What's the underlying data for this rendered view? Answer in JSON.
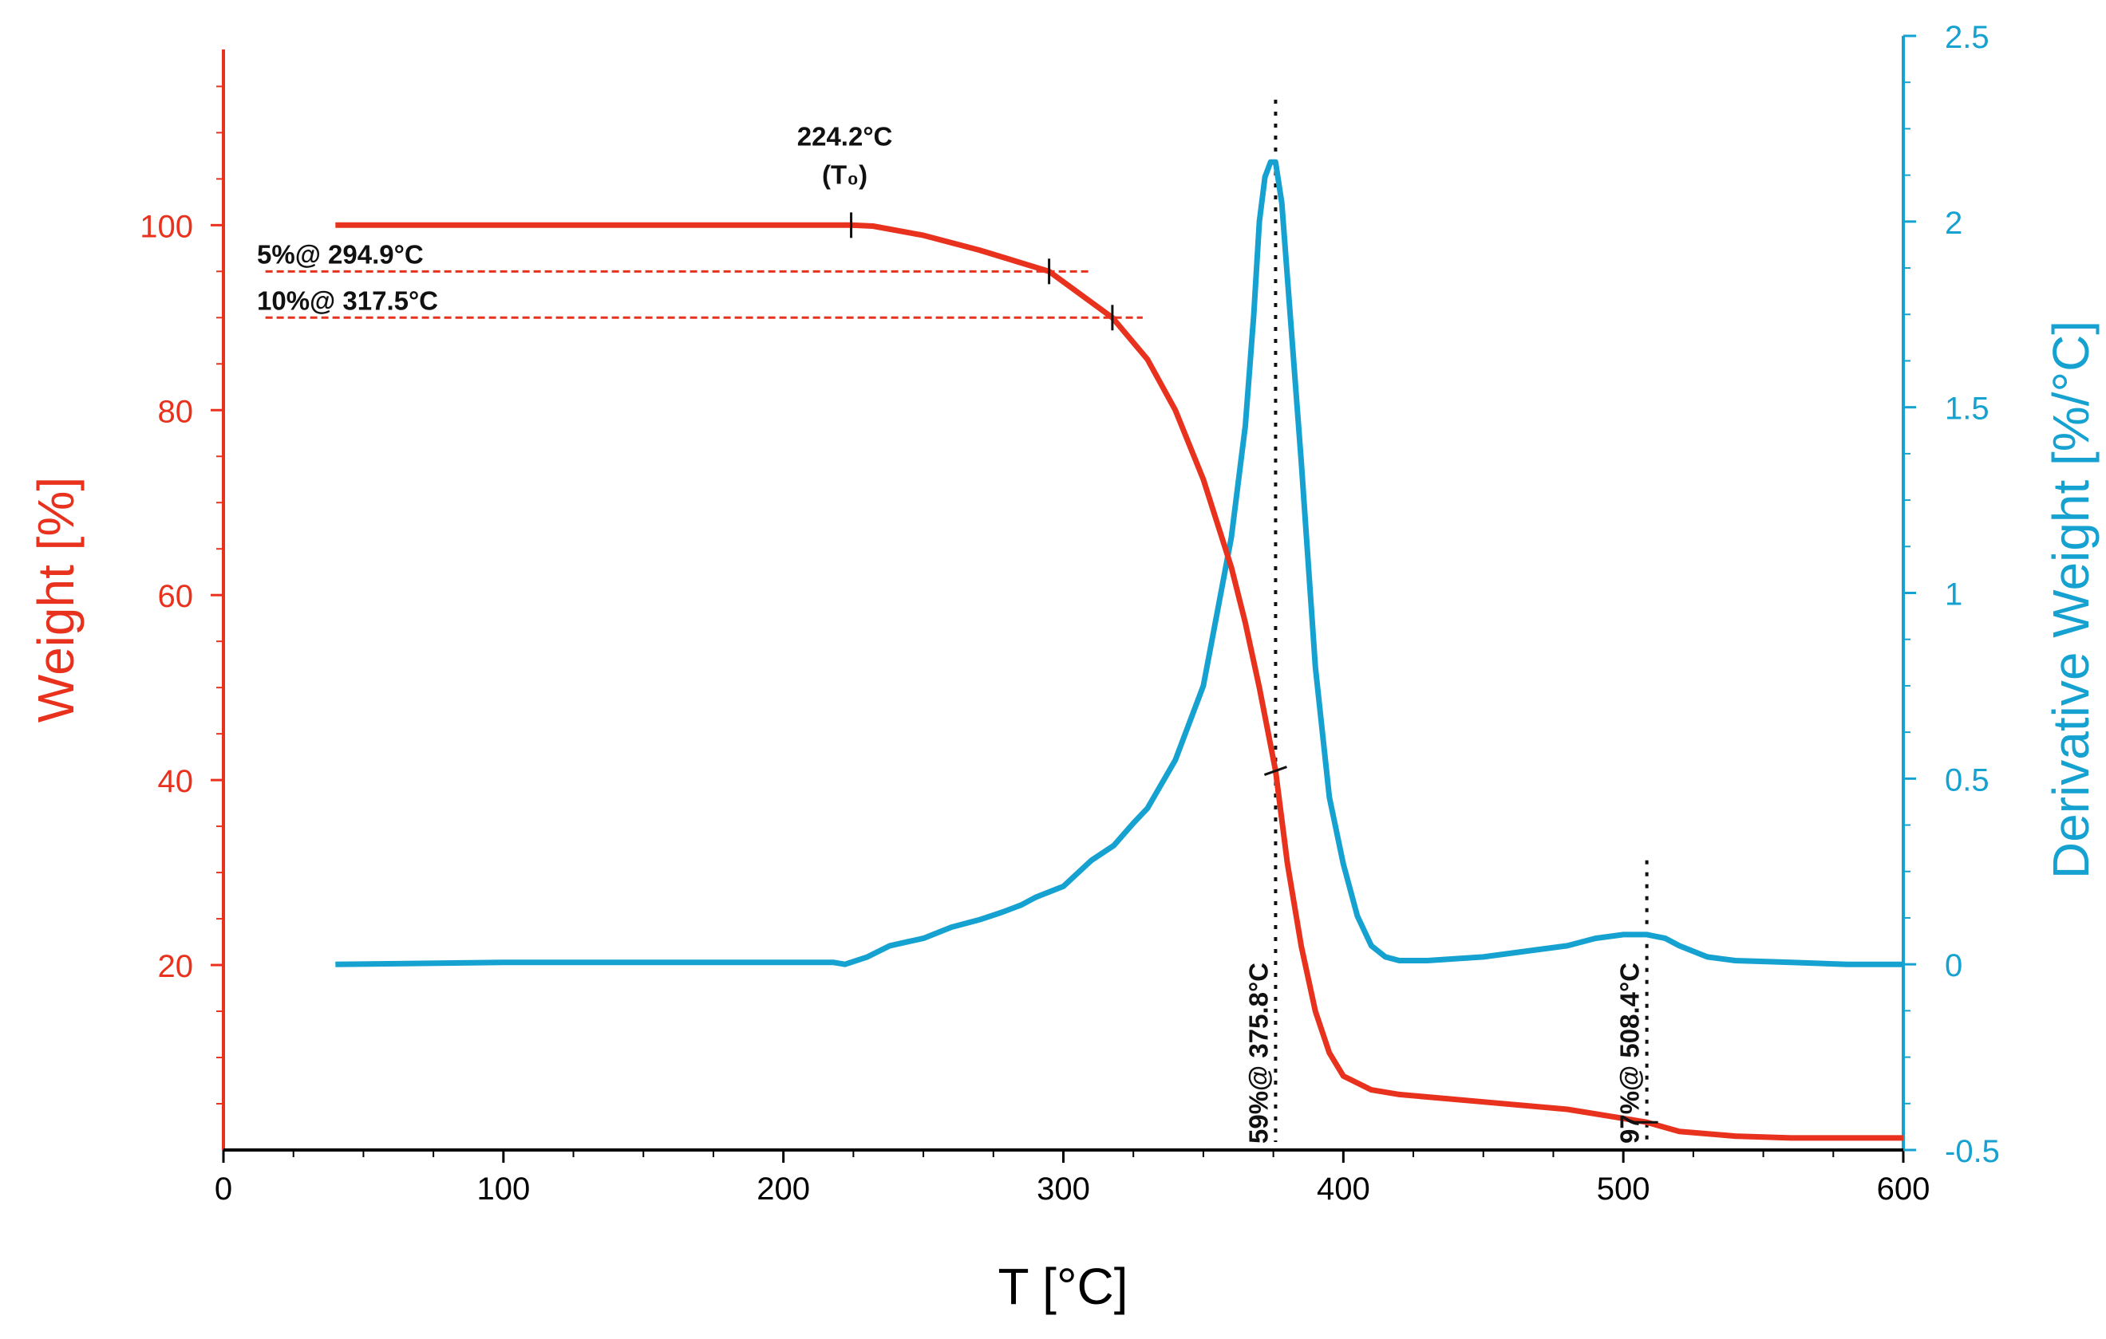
{
  "colors": {
    "weight": "#e8321e",
    "derivative": "#16a2d0",
    "annotation": "#111111",
    "threshold": "#e8321e"
  },
  "chart_data": {
    "type": "line",
    "title": "",
    "xlabel": "T [°C]",
    "xlim": [
      0,
      600
    ],
    "x_ticks": [
      0,
      100,
      200,
      300,
      400,
      500,
      600
    ],
    "y_left": {
      "label": "Weight [%]",
      "lim": [
        0,
        119
      ],
      "ticks": [
        20,
        40,
        60,
        80,
        100
      ],
      "tick_labels": [
        "20",
        "40",
        "60",
        "80",
        "100"
      ]
    },
    "y_right": {
      "label": "Derivative Weight [%/°C]",
      "lim": [
        -0.5,
        2.5
      ],
      "ticks": [
        -0.5,
        0,
        0.5,
        1,
        1.5,
        2,
        2.5
      ],
      "tick_labels": [
        "-0.5",
        "0",
        "0.5",
        "1",
        "1.5",
        "2",
        "2.5"
      ]
    },
    "series": [
      {
        "name": "Weight",
        "axis": "left",
        "x": [
          40,
          100,
          200,
          224.2,
          232,
          250,
          270,
          294.9,
          317.5,
          330,
          340,
          350,
          360,
          365,
          370,
          375.8,
          380,
          385,
          390,
          395,
          400,
          410,
          420,
          450,
          480,
          508.4,
          520,
          540,
          560,
          600
        ],
        "y": [
          100,
          100,
          100,
          100,
          99.9,
          98.9,
          97.3,
          95,
          90,
          85.5,
          80,
          72.5,
          63,
          57,
          50,
          41,
          31,
          22,
          15,
          10.5,
          8,
          6.5,
          6,
          5.2,
          4.4,
          3,
          2,
          1.5,
          1.3,
          1.3
        ]
      },
      {
        "name": "Derivative Weight",
        "axis": "right",
        "x": [
          40,
          100,
          200,
          218,
          222,
          230,
          238,
          244,
          250,
          260,
          270,
          278,
          285,
          290,
          300,
          310,
          318,
          325,
          330,
          340,
          350,
          355,
          360,
          365,
          368,
          370,
          372,
          374,
          375.8,
          378,
          380,
          385,
          390,
          395,
          400,
          405,
          410,
          415,
          420,
          425,
          430,
          450,
          470,
          480,
          490,
          500,
          508.4,
          515,
          520,
          530,
          540,
          560,
          580,
          600
        ],
        "y": [
          0,
          0.005,
          0.005,
          0.005,
          0,
          0.02,
          0.05,
          0.06,
          0.07,
          0.1,
          0.12,
          0.14,
          0.16,
          0.18,
          0.21,
          0.28,
          0.32,
          0.38,
          0.42,
          0.55,
          0.75,
          0.95,
          1.15,
          1.45,
          1.75,
          2.0,
          2.12,
          2.16,
          2.16,
          2.05,
          1.85,
          1.35,
          0.8,
          0.45,
          0.27,
          0.13,
          0.05,
          0.02,
          0.01,
          0.01,
          0.01,
          0.02,
          0.04,
          0.05,
          0.07,
          0.08,
          0.08,
          0.07,
          0.05,
          0.02,
          0.01,
          0.005,
          0,
          0
        ]
      }
    ],
    "annotations": [
      {
        "id": "onset",
        "text": "224.2°C",
        "sub": "(T₀)",
        "x": 224.2,
        "y": 100
      },
      {
        "id": "t5",
        "text": "5%@ 294.9°C",
        "x": 294.9,
        "y": 95,
        "line_from_x": 15
      },
      {
        "id": "t10",
        "text": "10%@ 317.5°C",
        "x": 317.5,
        "y": 90,
        "line_from_x": 15
      },
      {
        "id": "peak1",
        "text": "59%@ 375.8°C",
        "x": 375.8,
        "y": 41
      },
      {
        "id": "peak2",
        "text": "97%@ 508.4°C",
        "x": 508.4,
        "y": 3
      }
    ]
  }
}
